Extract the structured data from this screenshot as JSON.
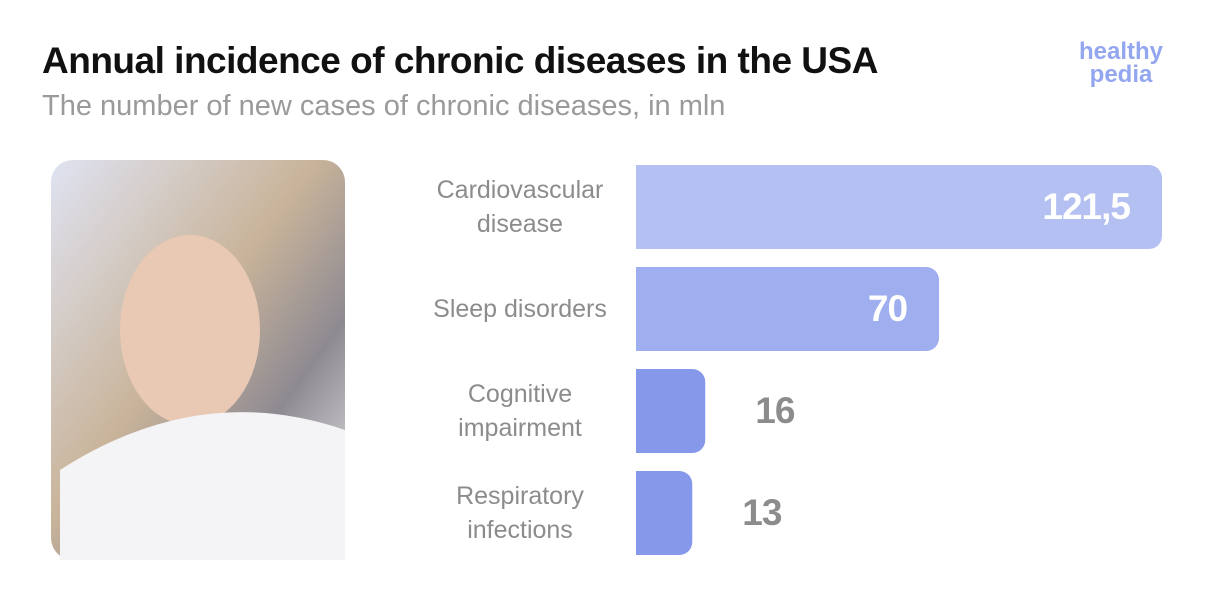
{
  "chart_data": {
    "type": "bar",
    "orientation": "horizontal",
    "title": "Annual incidence of chronic diseases in the USA",
    "subtitle": "The number of new cases of chronic diseases, in mln",
    "brand": [
      "healthy",
      "pedia"
    ],
    "categories": [
      "Cardiovascular disease",
      "Sleep disorders",
      "Cognitive impairment",
      "Respiratory infections"
    ],
    "values": [
      121.5,
      70,
      16,
      13
    ],
    "value_labels": [
      "121,5",
      "70",
      "16",
      "13"
    ],
    "colors": [
      "#b4c0f2",
      "#9eaeef",
      "#8598ea",
      "#8598ea"
    ]
  }
}
